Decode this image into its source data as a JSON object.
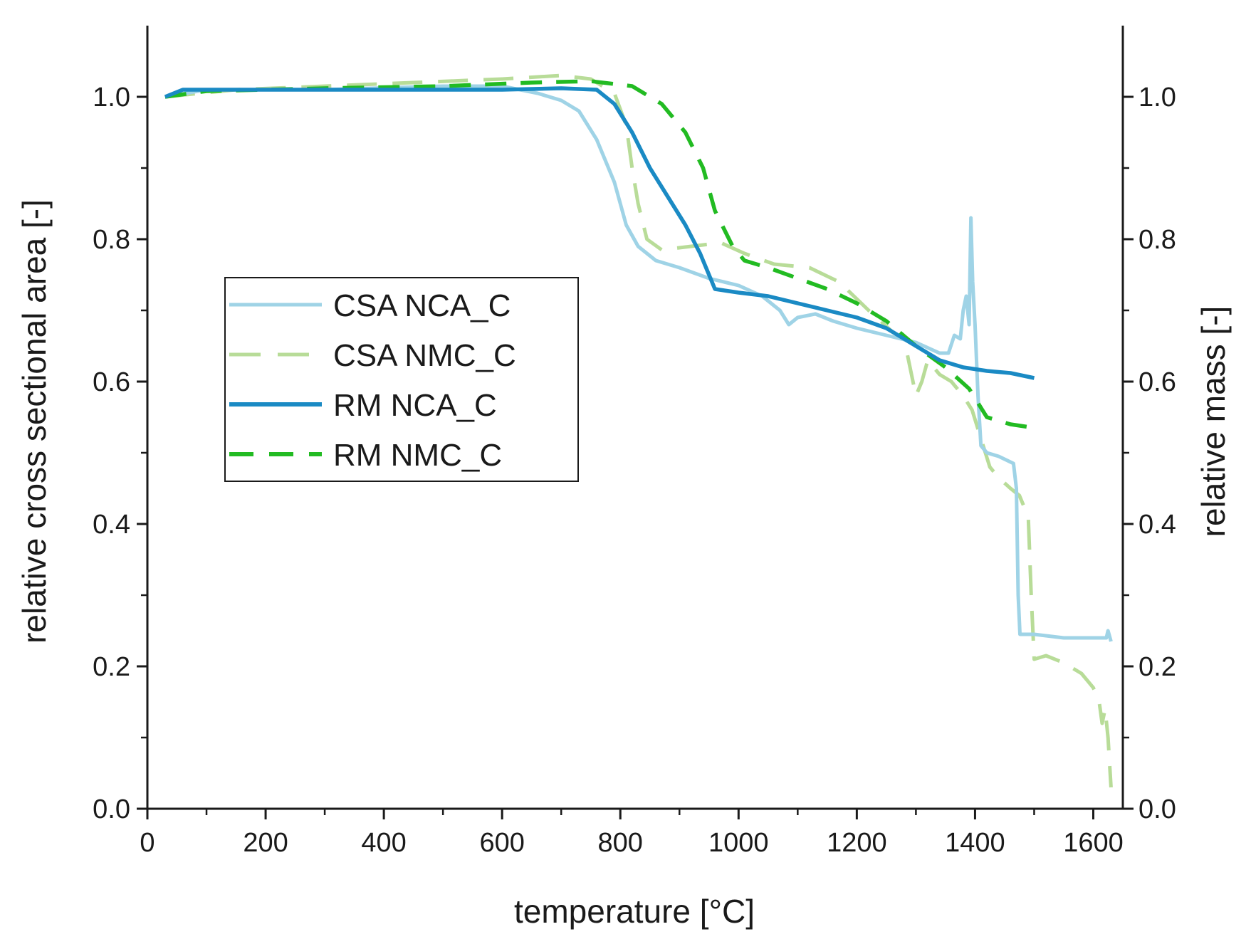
{
  "chart_data": {
    "type": "line",
    "xlabel": "temperature [°C]",
    "ylabel": "relative cross sectional area [-]",
    "y2label": "relative mass [-]",
    "xlim": [
      0,
      1650
    ],
    "ylim": [
      0,
      1.1
    ],
    "y2lim": [
      0,
      1.1
    ],
    "xticks": [
      0,
      200,
      400,
      600,
      800,
      1000,
      1200,
      1400,
      1600
    ],
    "yticks": [
      0.0,
      0.2,
      0.4,
      0.6,
      0.8,
      1.0
    ],
    "xtick_labels": [
      "0",
      "200",
      "400",
      "600",
      "800",
      "1000",
      "1200",
      "1400",
      "1600"
    ],
    "ytick_labels": [
      "0.0",
      "0.2",
      "0.4",
      "0.6",
      "0.8",
      "1.0"
    ],
    "y2tick_labels": [
      "0.0",
      "0.2",
      "0.4",
      "0.6",
      "0.8",
      "1.0"
    ],
    "legend_position": "middle-left",
    "grid": false,
    "series": [
      {
        "name": "CSA NCA_C",
        "color": "#9fd3e6",
        "dash": "solid",
        "axis": "left",
        "points": [
          [
            30,
            1.0
          ],
          [
            100,
            1.01
          ],
          [
            300,
            1.01
          ],
          [
            500,
            1.015
          ],
          [
            600,
            1.015
          ],
          [
            660,
            1.005
          ],
          [
            700,
            0.995
          ],
          [
            730,
            0.98
          ],
          [
            760,
            0.94
          ],
          [
            790,
            0.88
          ],
          [
            810,
            0.82
          ],
          [
            830,
            0.79
          ],
          [
            860,
            0.77
          ],
          [
            900,
            0.76
          ],
          [
            950,
            0.745
          ],
          [
            1000,
            0.735
          ],
          [
            1040,
            0.72
          ],
          [
            1070,
            0.7
          ],
          [
            1085,
            0.68
          ],
          [
            1100,
            0.69
          ],
          [
            1130,
            0.695
          ],
          [
            1160,
            0.685
          ],
          [
            1200,
            0.675
          ],
          [
            1250,
            0.665
          ],
          [
            1300,
            0.655
          ],
          [
            1340,
            0.64
          ],
          [
            1355,
            0.64
          ],
          [
            1365,
            0.665
          ],
          [
            1375,
            0.66
          ],
          [
            1380,
            0.7
          ],
          [
            1385,
            0.72
          ],
          [
            1390,
            0.68
          ],
          [
            1393,
            0.83
          ],
          [
            1396,
            0.74
          ],
          [
            1400,
            0.68
          ],
          [
            1405,
            0.58
          ],
          [
            1410,
            0.51
          ],
          [
            1420,
            0.5
          ],
          [
            1440,
            0.495
          ],
          [
            1465,
            0.485
          ],
          [
            1470,
            0.45
          ],
          [
            1473,
            0.3
          ],
          [
            1476,
            0.245
          ],
          [
            1500,
            0.245
          ],
          [
            1550,
            0.24
          ],
          [
            1600,
            0.24
          ],
          [
            1622,
            0.24
          ],
          [
            1625,
            0.25
          ],
          [
            1630,
            0.235
          ]
        ]
      },
      {
        "name": "CSA NMC_C",
        "color": "#b8dc98",
        "dash": "long-dash",
        "axis": "left",
        "points": [
          [
            30,
            1.0
          ],
          [
            150,
            1.01
          ],
          [
            300,
            1.015
          ],
          [
            450,
            1.02
          ],
          [
            600,
            1.025
          ],
          [
            700,
            1.03
          ],
          [
            750,
            1.025
          ],
          [
            790,
            1.005
          ],
          [
            810,
            0.96
          ],
          [
            820,
            0.9
          ],
          [
            830,
            0.85
          ],
          [
            845,
            0.8
          ],
          [
            870,
            0.785
          ],
          [
            920,
            0.79
          ],
          [
            970,
            0.795
          ],
          [
            1010,
            0.78
          ],
          [
            1060,
            0.765
          ],
          [
            1120,
            0.76
          ],
          [
            1170,
            0.74
          ],
          [
            1220,
            0.7
          ],
          [
            1260,
            0.67
          ],
          [
            1280,
            0.66
          ],
          [
            1290,
            0.62
          ],
          [
            1300,
            0.58
          ],
          [
            1310,
            0.6
          ],
          [
            1320,
            0.63
          ],
          [
            1340,
            0.61
          ],
          [
            1360,
            0.6
          ],
          [
            1380,
            0.58
          ],
          [
            1395,
            0.56
          ],
          [
            1410,
            0.52
          ],
          [
            1425,
            0.48
          ],
          [
            1440,
            0.465
          ],
          [
            1460,
            0.45
          ],
          [
            1475,
            0.44
          ],
          [
            1490,
            0.41
          ],
          [
            1495,
            0.3
          ],
          [
            1500,
            0.21
          ],
          [
            1520,
            0.215
          ],
          [
            1550,
            0.205
          ],
          [
            1580,
            0.19
          ],
          [
            1600,
            0.17
          ],
          [
            1610,
            0.15
          ],
          [
            1615,
            0.12
          ],
          [
            1620,
            0.14
          ],
          [
            1625,
            0.1
          ],
          [
            1630,
            0.03
          ]
        ]
      },
      {
        "name": "RM NCA_C",
        "color": "#1a8ac4",
        "dash": "solid",
        "axis": "right",
        "points": [
          [
            30,
            1.0
          ],
          [
            60,
            1.01
          ],
          [
            200,
            1.01
          ],
          [
            400,
            1.01
          ],
          [
            600,
            1.01
          ],
          [
            700,
            1.012
          ],
          [
            760,
            1.01
          ],
          [
            790,
            0.99
          ],
          [
            820,
            0.95
          ],
          [
            850,
            0.9
          ],
          [
            880,
            0.86
          ],
          [
            910,
            0.82
          ],
          [
            935,
            0.78
          ],
          [
            960,
            0.73
          ],
          [
            1000,
            0.725
          ],
          [
            1050,
            0.72
          ],
          [
            1100,
            0.71
          ],
          [
            1150,
            0.7
          ],
          [
            1200,
            0.69
          ],
          [
            1250,
            0.675
          ],
          [
            1300,
            0.65
          ],
          [
            1340,
            0.63
          ],
          [
            1380,
            0.62
          ],
          [
            1420,
            0.615
          ],
          [
            1460,
            0.612
          ],
          [
            1500,
            0.605
          ]
        ]
      },
      {
        "name": "RM NMC_C",
        "color": "#22bb22",
        "dash": "dash",
        "axis": "right",
        "points": [
          [
            30,
            1.0
          ],
          [
            100,
            1.008
          ],
          [
            300,
            1.012
          ],
          [
            500,
            1.015
          ],
          [
            650,
            1.02
          ],
          [
            750,
            1.022
          ],
          [
            820,
            1.015
          ],
          [
            870,
            0.99
          ],
          [
            910,
            0.95
          ],
          [
            940,
            0.9
          ],
          [
            960,
            0.84
          ],
          [
            990,
            0.79
          ],
          [
            1010,
            0.77
          ],
          [
            1050,
            0.76
          ],
          [
            1100,
            0.745
          ],
          [
            1150,
            0.73
          ],
          [
            1200,
            0.71
          ],
          [
            1250,
            0.685
          ],
          [
            1300,
            0.65
          ],
          [
            1350,
            0.62
          ],
          [
            1390,
            0.59
          ],
          [
            1420,
            0.55
          ],
          [
            1460,
            0.54
          ],
          [
            1500,
            0.535
          ]
        ]
      }
    ]
  }
}
